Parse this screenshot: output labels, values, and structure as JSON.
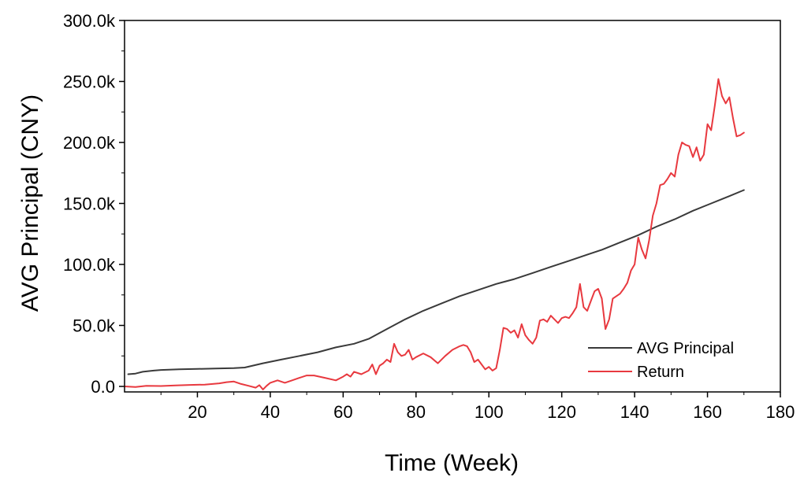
{
  "chart_data": {
    "type": "line",
    "xlabel": "Time (Week)",
    "ylabel": "AVG Principal (CNY)",
    "xlim": [
      0,
      180
    ],
    "ylim": [
      0,
      300000
    ],
    "x_ticks": [
      20,
      40,
      60,
      80,
      100,
      120,
      140,
      160,
      180
    ],
    "x_tick_labels": [
      "20",
      "40",
      "60",
      "80",
      "100",
      "120",
      "140",
      "160",
      "180"
    ],
    "y_ticks": [
      0,
      50000,
      100000,
      150000,
      200000,
      250000,
      300000
    ],
    "y_tick_labels": [
      "0.0",
      "50.0k",
      "100.0k",
      "150.0k",
      "200.0k",
      "250.0k",
      "300.0k"
    ],
    "grid": false,
    "legend_position": "bottom-right",
    "series": [
      {
        "name": "AVG Principal",
        "color": "#3a3a3a",
        "x": [
          1,
          3,
          5,
          8,
          10,
          15,
          20,
          25,
          30,
          33,
          38,
          43,
          48,
          53,
          58,
          63,
          67,
          72,
          77,
          82,
          87,
          92,
          97,
          102,
          107,
          112,
          117,
          122,
          127,
          131,
          136,
          141,
          146,
          151,
          156,
          161,
          166,
          170
        ],
        "y": [
          10000,
          10500,
          12000,
          13000,
          13500,
          14000,
          14300,
          14700,
          15000,
          15500,
          19000,
          22000,
          25000,
          28000,
          32000,
          35000,
          39000,
          47000,
          55000,
          62000,
          68000,
          74000,
          79000,
          84000,
          88000,
          93000,
          98000,
          103000,
          108000,
          112000,
          118000,
          124000,
          131000,
          137000,
          144000,
          150000,
          156000,
          161000
        ]
      },
      {
        "name": "Return",
        "color": "#e8393f",
        "x": [
          0,
          3,
          6,
          10,
          14,
          18,
          22,
          26,
          28,
          30,
          32,
          34,
          36,
          37,
          38,
          39,
          40,
          42,
          44,
          46,
          48,
          50,
          52,
          55,
          58,
          60,
          61,
          62,
          63,
          65,
          67,
          68,
          69,
          70,
          71,
          72,
          73,
          74,
          75,
          76,
          77,
          78,
          79,
          80,
          82,
          84,
          86,
          88,
          90,
          92,
          93,
          94,
          95,
          96,
          97,
          98,
          99,
          100,
          101,
          102,
          103,
          104,
          105,
          106,
          107,
          108,
          109,
          110,
          111,
          112,
          113,
          114,
          115,
          116,
          117,
          118,
          119,
          120,
          121,
          122,
          123,
          124,
          125,
          126,
          127,
          128,
          129,
          130,
          131,
          132,
          133,
          134,
          135,
          136,
          137,
          138,
          139,
          140,
          141,
          142,
          143,
          144,
          145,
          146,
          147,
          148,
          149,
          150,
          151,
          152,
          153,
          154,
          155,
          156,
          157,
          158,
          159,
          160,
          161,
          162,
          163,
          164,
          165,
          166,
          167,
          168,
          169,
          170
        ],
        "y": [
          0,
          -500,
          500,
          300,
          800,
          1200,
          1500,
          2500,
          3500,
          4000,
          2000,
          500,
          -1000,
          1000,
          -2500,
          500,
          3000,
          5000,
          3000,
          5000,
          7000,
          9000,
          9000,
          7000,
          5000,
          8000,
          10000,
          8000,
          12000,
          10000,
          13000,
          18000,
          10000,
          17000,
          19000,
          22000,
          20000,
          35000,
          28000,
          25000,
          26000,
          30000,
          22000,
          24000,
          27000,
          24000,
          19000,
          25000,
          30000,
          33000,
          34000,
          33000,
          28000,
          20000,
          22000,
          18000,
          14000,
          16000,
          13000,
          15000,
          30000,
          48000,
          47000,
          44000,
          46000,
          40000,
          51000,
          42000,
          38000,
          35000,
          40000,
          54000,
          55000,
          53000,
          58000,
          55000,
          52000,
          56000,
          57000,
          56000,
          60000,
          65000,
          84000,
          65000,
          62000,
          70000,
          78000,
          80000,
          72000,
          47000,
          55000,
          72000,
          74000,
          76000,
          80000,
          85000,
          95000,
          100000,
          122000,
          112000,
          105000,
          120000,
          140000,
          150000,
          165000,
          166000,
          170000,
          175000,
          172000,
          190000,
          200000,
          198000,
          197000,
          188000,
          196000,
          185000,
          190000,
          215000,
          210000,
          230000,
          252000,
          238000,
          232000,
          237000,
          220000,
          205000,
          206000,
          208000
        ]
      }
    ]
  }
}
